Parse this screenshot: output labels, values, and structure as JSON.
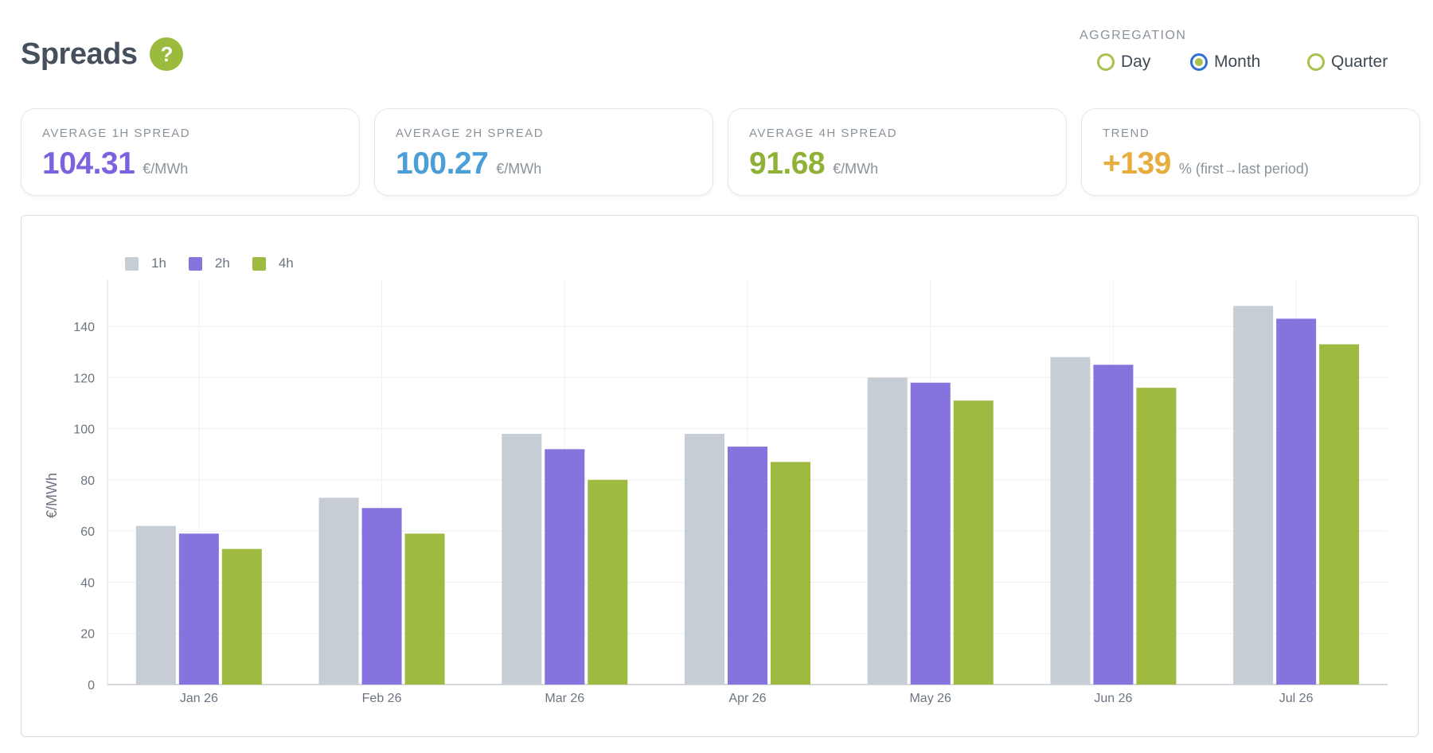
{
  "page": {
    "title": "Spreads",
    "help_label": "?"
  },
  "aggregation": {
    "label": "AGGREGATION",
    "options": [
      {
        "label": "Day",
        "selected": false
      },
      {
        "label": "Month",
        "selected": true
      },
      {
        "label": "Quarter",
        "selected": false
      }
    ]
  },
  "cards": [
    {
      "label": "AVERAGE 1H SPREAD",
      "value": "104.31",
      "unit": "€/MWh",
      "color": "#7c62df"
    },
    {
      "label": "AVERAGE 2H SPREAD",
      "value": "100.27",
      "unit": "€/MWh",
      "color": "#4a9fd8"
    },
    {
      "label": "AVERAGE 4H SPREAD",
      "value": "91.68",
      "unit": "€/MWh",
      "color": "#8fb236"
    },
    {
      "label": "TREND",
      "value": "+139",
      "unit": "% (first→last period)",
      "color": "#e8ad3f"
    }
  ],
  "chart_data": {
    "type": "bar",
    "categories": [
      "Jan 26",
      "Feb 26",
      "Mar 26",
      "Apr 26",
      "May 26",
      "Jun 26",
      "Jul 26"
    ],
    "series": [
      {
        "name": "1h",
        "color": "#c6cdd4",
        "values": [
          62,
          73,
          98,
          98,
          120,
          128,
          148
        ]
      },
      {
        "name": "2h",
        "color": "#8773de",
        "values": [
          59,
          69,
          92,
          93,
          118,
          125,
          143
        ]
      },
      {
        "name": "4h",
        "color": "#9eba40",
        "values": [
          53,
          59,
          80,
          87,
          111,
          116,
          133
        ]
      }
    ],
    "ylabel": "€/MWh",
    "yticks": [
      0,
      20,
      40,
      60,
      80,
      100,
      120,
      140
    ],
    "ylim": [
      0,
      155
    ],
    "grid": true,
    "legend_position": "top-left"
  }
}
